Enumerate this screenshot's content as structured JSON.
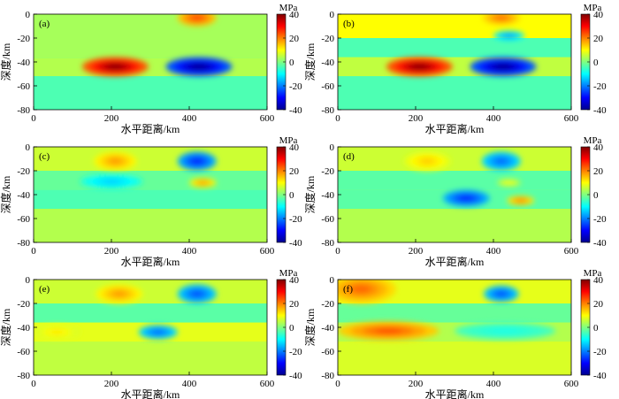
{
  "figure": {
    "panel_count": 6
  },
  "colorbar": {
    "unit": "MPa",
    "ticks": [
      "40",
      "20",
      "0",
      "-20",
      "-40"
    ],
    "tick_values": [
      40,
      20,
      0,
      -20,
      -40
    ],
    "range": [
      -40,
      40
    ],
    "colormap": "jet",
    "stops": [
      "#00008f",
      "#0000ff",
      "#0080ff",
      "#00ffff",
      "#80ff80",
      "#ffff00",
      "#ff8000",
      "#ff0000",
      "#800000"
    ]
  },
  "chart_data": [
    {
      "type": "heatmap",
      "panel": "(a)",
      "xlabel": "水平距离/km",
      "ylabel": "深度/km",
      "xlim": [
        0,
        600
      ],
      "ylim": [
        -80,
        0
      ],
      "xticks": [
        "0",
        "200",
        "400",
        "600"
      ],
      "yticks": [
        "0",
        "-20",
        "-40",
        "-60",
        "-80"
      ],
      "background_value": -5,
      "layers": [
        {
          "depth": [
            0,
            -37
          ],
          "value": 3
        },
        {
          "depth": [
            -37,
            -52
          ],
          "value": 4
        },
        {
          "depth": [
            -52,
            -80
          ],
          "value": -4
        }
      ],
      "anomalies": [
        {
          "x": 210,
          "depth": -44,
          "rx": 85,
          "ry": 8,
          "value": 40
        },
        {
          "x": 425,
          "depth": -44,
          "rx": 85,
          "ry": 8,
          "value": -40
        },
        {
          "x": 420,
          "depth": -3,
          "rx": 50,
          "ry": 7,
          "value": 25
        }
      ]
    },
    {
      "type": "heatmap",
      "panel": "(b)",
      "xlabel": "水平距离/km",
      "ylabel": "深度/km",
      "xlim": [
        0,
        600
      ],
      "ylim": [
        -80,
        0
      ],
      "xticks": [
        "0",
        "200",
        "400",
        "600"
      ],
      "yticks": [
        "0",
        "-20",
        "-40",
        "-60",
        "-80"
      ],
      "background_value": -3,
      "layers": [
        {
          "depth": [
            0,
            -20
          ],
          "value": 10
        },
        {
          "depth": [
            -20,
            -36
          ],
          "value": -4
        },
        {
          "depth": [
            -36,
            -52
          ],
          "value": 5
        },
        {
          "depth": [
            -52,
            -80
          ],
          "value": -4
        }
      ],
      "anomalies": [
        {
          "x": 210,
          "depth": -44,
          "rx": 85,
          "ry": 8,
          "value": 40
        },
        {
          "x": 425,
          "depth": -44,
          "rx": 85,
          "ry": 8,
          "value": -40
        },
        {
          "x": 420,
          "depth": -3,
          "rx": 50,
          "ry": 6,
          "value": 22
        },
        {
          "x": 440,
          "depth": -18,
          "rx": 40,
          "ry": 4,
          "value": -18
        }
      ]
    },
    {
      "type": "heatmap",
      "panel": "(c)",
      "xlabel": "水平距离/km",
      "ylabel": "深度/km",
      "xlim": [
        0,
        600
      ],
      "ylim": [
        -80,
        0
      ],
      "xticks": [
        "0",
        "200",
        "400",
        "600"
      ],
      "yticks": [
        "0",
        "-20",
        "-40",
        "-60",
        "-80"
      ],
      "background_value": 4,
      "layers": [
        {
          "depth": [
            0,
            -20
          ],
          "value": 6
        },
        {
          "depth": [
            -20,
            -36
          ],
          "value": -2
        },
        {
          "depth": [
            -36,
            -52
          ],
          "value": -4
        },
        {
          "depth": [
            -52,
            -80
          ],
          "value": 4
        }
      ],
      "anomalies": [
        {
          "x": 210,
          "depth": -12,
          "rx": 55,
          "ry": 8,
          "value": 18
        },
        {
          "x": 420,
          "depth": -12,
          "rx": 50,
          "ry": 8,
          "value": -28
        },
        {
          "x": 200,
          "depth": -29,
          "rx": 80,
          "ry": 6,
          "value": -14
        },
        {
          "x": 435,
          "depth": -30,
          "rx": 35,
          "ry": 4,
          "value": 18
        }
      ]
    },
    {
      "type": "heatmap",
      "panel": "(d)",
      "xlabel": "水平距离/km",
      "ylabel": "深度/km",
      "xlim": [
        0,
        600
      ],
      "ylim": [
        -80,
        0
      ],
      "xticks": [
        "0",
        "200",
        "400",
        "600"
      ],
      "yticks": [
        "0",
        "-20",
        "-40",
        "-60",
        "-80"
      ],
      "background_value": 4,
      "layers": [
        {
          "depth": [
            0,
            -20
          ],
          "value": 6
        },
        {
          "depth": [
            -20,
            -36
          ],
          "value": -3
        },
        {
          "depth": [
            -36,
            -52
          ],
          "value": -3
        },
        {
          "depth": [
            -52,
            -80
          ],
          "value": 4
        }
      ],
      "anomalies": [
        {
          "x": 230,
          "depth": -12,
          "rx": 60,
          "ry": 8,
          "value": 14
        },
        {
          "x": 420,
          "depth": -12,
          "rx": 50,
          "ry": 8,
          "value": -22
        },
        {
          "x": 330,
          "depth": -43,
          "rx": 60,
          "ry": 7,
          "value": -28
        },
        {
          "x": 470,
          "depth": -45,
          "rx": 35,
          "ry": 4,
          "value": 20
        },
        {
          "x": 440,
          "depth": -30,
          "rx": 30,
          "ry": 3,
          "value": 10
        }
      ]
    },
    {
      "type": "heatmap",
      "panel": "(e)",
      "xlabel": "水平距离/km",
      "ylabel": "深度/km",
      "xlim": [
        0,
        600
      ],
      "ylim": [
        -80,
        0
      ],
      "xticks": [
        "0",
        "200",
        "400",
        "600"
      ],
      "yticks": [
        "0",
        "-20",
        "-40",
        "-60",
        "-80"
      ],
      "background_value": 5,
      "layers": [
        {
          "depth": [
            0,
            -20
          ],
          "value": 6
        },
        {
          "depth": [
            -20,
            -36
          ],
          "value": -3
        },
        {
          "depth": [
            -36,
            -52
          ],
          "value": 8
        },
        {
          "depth": [
            -52,
            -80
          ],
          "value": 5
        }
      ],
      "anomalies": [
        {
          "x": 220,
          "depth": -12,
          "rx": 60,
          "ry": 8,
          "value": 18
        },
        {
          "x": 420,
          "depth": -12,
          "rx": 50,
          "ry": 8,
          "value": -24
        },
        {
          "x": 320,
          "depth": -44,
          "rx": 50,
          "ry": 6,
          "value": -22
        },
        {
          "x": 60,
          "depth": -44,
          "rx": 60,
          "ry": 6,
          "value": 12
        }
      ]
    },
    {
      "type": "heatmap",
      "panel": "(f)",
      "xlabel": "水平距离/km",
      "ylabel": "深度/km",
      "xlim": [
        0,
        600
      ],
      "ylim": [
        -80,
        0
      ],
      "xticks": [
        "0",
        "200",
        "400",
        "600"
      ],
      "yticks": [
        "0",
        "-20",
        "-40",
        "-60",
        "-80"
      ],
      "background_value": 6,
      "layers": [
        {
          "depth": [
            0,
            -20
          ],
          "value": 8
        },
        {
          "depth": [
            -20,
            -36
          ],
          "value": -2
        },
        {
          "depth": [
            -36,
            -52
          ],
          "value": 4
        },
        {
          "depth": [
            -52,
            -80
          ],
          "value": 7
        }
      ],
      "anomalies": [
        {
          "x": 60,
          "depth": -8,
          "rx": 90,
          "ry": 12,
          "value": 22
        },
        {
          "x": 420,
          "depth": -12,
          "rx": 45,
          "ry": 7,
          "value": -24
        },
        {
          "x": 130,
          "depth": -43,
          "rx": 130,
          "ry": 8,
          "value": 24
        },
        {
          "x": 430,
          "depth": -43,
          "rx": 130,
          "ry": 7,
          "value": -8
        }
      ]
    }
  ]
}
